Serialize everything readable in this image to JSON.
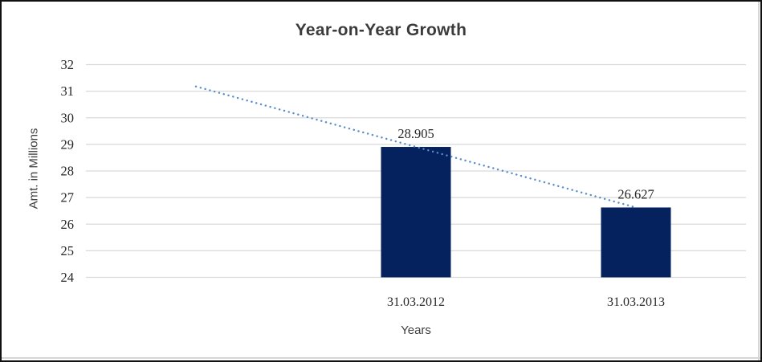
{
  "chart_data": {
    "type": "bar",
    "title": "Year-on-Year Growth",
    "xlabel": "Years",
    "ylabel": "Amt. in Millions",
    "categories": [
      "31.03.2012",
      "31.03.2013"
    ],
    "values": [
      28.905,
      26.627
    ],
    "data_labels": [
      "28.905",
      "26.627"
    ],
    "ylim": [
      24,
      32
    ],
    "yticks": [
      24,
      25,
      26,
      27,
      28,
      29,
      30,
      31,
      32
    ],
    "grid": true,
    "legend": "none",
    "category_slots": 3,
    "bar_slots": [
      1,
      2
    ],
    "trendline": {
      "style": "dotted",
      "points": [
        {
          "slot": 0,
          "value": 31.18
        },
        {
          "slot": 1,
          "value": 28.905
        },
        {
          "slot": 2,
          "value": 26.627
        }
      ]
    },
    "colors": {
      "bar": "#05215e",
      "trendline": "#568cc9",
      "gridline": "#d9d9d9",
      "tick_text": "#262626",
      "title_text": "#3b3b3b",
      "axis_title_text": "#3f3f3f"
    }
  }
}
